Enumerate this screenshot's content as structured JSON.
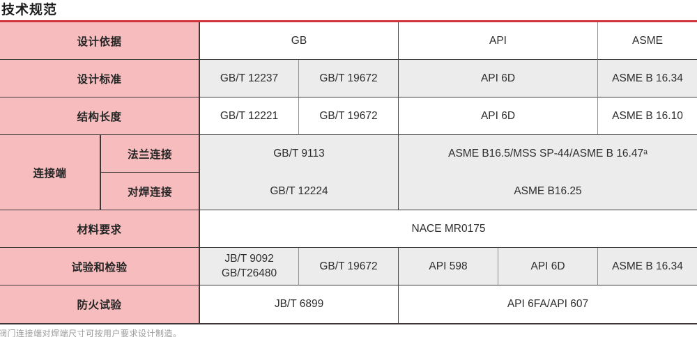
{
  "page": {
    "title": "技术规范",
    "footnote": "阀门连接端对焊端尺寸可按用户要求设计制造。"
  },
  "colors": {
    "accent_red": "#d0343f",
    "header_pink": "#f7bcbe",
    "row_gray": "#ececec",
    "border_dark": "#3d3737",
    "border_gray": "#8f8f8f"
  },
  "table": {
    "design_basis": {
      "header": "设计依据",
      "gb": "GB",
      "api": "API",
      "asme": "ASME"
    },
    "design_standard": {
      "header": "设计标准",
      "gb1": "GB/T 12237",
      "gb2": "GB/T 19672",
      "api": "API 6D",
      "asme": "ASME B 16.34"
    },
    "structure_length": {
      "header": "结构长度",
      "gb1": "GB/T 12221",
      "gb2": "GB/T 19672",
      "api": "API 6D",
      "asme": "ASME B 16.10"
    },
    "connection_end": {
      "header": "连接端",
      "flange": {
        "label": "法兰连接",
        "gb": "GB/T 9113",
        "intl": "ASME B16.5/MSS SP-44/ASME B 16.47ᵃ"
      },
      "butt_weld": {
        "label": "对焊连接",
        "gb": "GB/T 12224",
        "intl": "ASME B16.25"
      }
    },
    "material_requirement": {
      "header": "材料要求",
      "value": "NACE MR0175"
    },
    "test_inspection": {
      "header": "试验和检验",
      "jb_line1": "JB/T 9092",
      "jb_line2": "GB/T26480",
      "gb2": "GB/T 19672",
      "api598": "API 598",
      "api6d": "API 6D",
      "asme": "ASME B 16.34"
    },
    "fire_test": {
      "header": "防火试验",
      "gb": "JB/T 6899",
      "intl": "API 6FA/API 607"
    }
  }
}
